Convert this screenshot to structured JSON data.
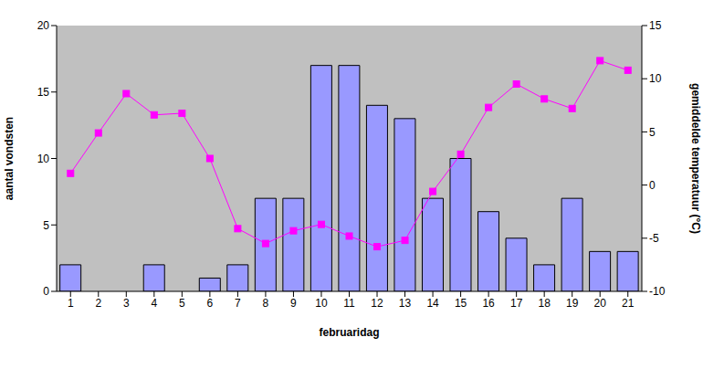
{
  "chart_data": {
    "type": "bar",
    "x_label": "februaridag",
    "y_label": "aantal vondsten",
    "y2_label": "gemiddelde temperatuur (°C)",
    "categories": [
      1,
      2,
      3,
      4,
      5,
      6,
      7,
      8,
      9,
      10,
      11,
      12,
      13,
      14,
      15,
      16,
      17,
      18,
      19,
      20,
      21
    ],
    "ylim": [
      0,
      20
    ],
    "yticks": [
      0,
      5,
      10,
      15,
      20
    ],
    "y2lim": [
      -10,
      15
    ],
    "y2ticks": [
      -10,
      -5,
      0,
      5,
      10,
      15
    ],
    "grid": false,
    "series": [
      {
        "name": "aantal vondsten",
        "type": "bar",
        "color": "#9999ff",
        "values": [
          2,
          0,
          0,
          2,
          0,
          1,
          2,
          7,
          7,
          17,
          17,
          14,
          13,
          7,
          10,
          6,
          4,
          2,
          7,
          3,
          3
        ]
      },
      {
        "name": "gemiddelde temperatuur (°C)",
        "type": "line",
        "axis": "y2",
        "color": "#ff00ff",
        "marker": "square",
        "values": [
          1.1,
          4.9,
          8.6,
          6.6,
          6.75,
          2.5,
          -4.1,
          -5.5,
          -4.3,
          -3.7,
          -4.8,
          -5.8,
          -5.2,
          -0.6,
          2.9,
          7.3,
          9.5,
          8.1,
          7.2,
          11.7,
          10.8
        ]
      }
    ]
  }
}
